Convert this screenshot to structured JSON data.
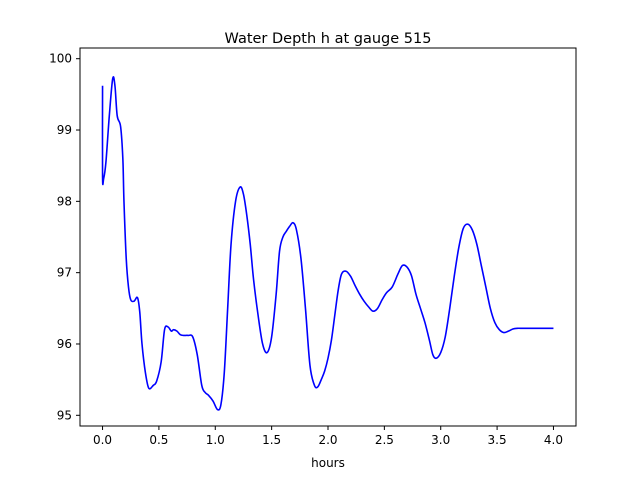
{
  "chart_data": {
    "type": "line",
    "title": "Water Depth h at gauge 515",
    "xlabel": "hours",
    "ylabel": "",
    "xlim": [
      -0.2,
      4.2
    ],
    "ylim": [
      94.85,
      100.15
    ],
    "xticks": [
      0.0,
      0.5,
      1.0,
      1.5,
      2.0,
      2.5,
      3.0,
      3.5,
      4.0
    ],
    "xtick_labels": [
      "0.0",
      "0.5",
      "1.0",
      "1.5",
      "2.0",
      "2.5",
      "3.0",
      "3.5",
      "4.0"
    ],
    "yticks": [
      95,
      96,
      97,
      98,
      99,
      100
    ],
    "ytick_labels": [
      "95",
      "96",
      "97",
      "98",
      "99",
      "100"
    ],
    "grid": false,
    "color": "#0000ff",
    "series": [
      {
        "x": [
          0.0,
          0.0,
          0.01,
          0.03,
          0.06,
          0.09,
          0.11,
          0.13,
          0.16,
          0.18,
          0.19,
          0.21,
          0.23,
          0.25,
          0.28,
          0.31,
          0.33,
          0.35,
          0.38,
          0.41,
          0.45,
          0.48,
          0.52,
          0.55,
          0.58,
          0.61,
          0.63,
          0.66,
          0.69,
          0.72,
          0.76,
          0.8,
          0.84,
          0.88,
          0.91,
          0.94,
          0.98,
          1.02,
          1.05,
          1.08,
          1.11,
          1.14,
          1.18,
          1.22,
          1.25,
          1.28,
          1.31,
          1.34,
          1.38,
          1.42,
          1.46,
          1.5,
          1.54,
          1.57,
          1.6,
          1.63,
          1.66,
          1.69,
          1.72,
          1.76,
          1.8,
          1.84,
          1.88,
          1.91,
          1.94,
          1.97,
          2.0,
          2.03,
          2.06,
          2.09,
          2.12,
          2.16,
          2.2,
          2.24,
          2.28,
          2.32,
          2.36,
          2.4,
          2.44,
          2.48,
          2.52,
          2.57,
          2.62,
          2.66,
          2.7,
          2.74,
          2.78,
          2.82,
          2.86,
          2.9,
          2.93,
          2.96,
          3.0,
          3.04,
          3.08,
          3.12,
          3.16,
          3.2,
          3.24,
          3.28,
          3.32,
          3.36,
          3.4,
          3.44,
          3.48,
          3.52,
          3.56,
          3.6,
          3.64,
          3.68,
          3.72,
          3.76,
          3.8,
          3.84,
          3.88,
          3.92,
          3.96,
          4.0
        ],
        "y": [
          99.62,
          98.35,
          98.32,
          98.55,
          99.2,
          99.72,
          99.62,
          99.2,
          99.05,
          98.6,
          98.0,
          97.2,
          96.8,
          96.62,
          96.6,
          96.65,
          96.45,
          96.0,
          95.6,
          95.38,
          95.42,
          95.48,
          95.75,
          96.2,
          96.24,
          96.18,
          96.2,
          96.18,
          96.13,
          96.12,
          96.12,
          96.1,
          95.85,
          95.42,
          95.32,
          95.28,
          95.2,
          95.08,
          95.15,
          95.6,
          96.5,
          97.4,
          98.0,
          98.2,
          98.1,
          97.8,
          97.4,
          96.9,
          96.4,
          96.0,
          95.88,
          96.1,
          96.7,
          97.3,
          97.5,
          97.58,
          97.65,
          97.7,
          97.6,
          97.2,
          96.5,
          95.7,
          95.42,
          95.4,
          95.5,
          95.62,
          95.8,
          96.05,
          96.4,
          96.75,
          96.98,
          97.02,
          96.95,
          96.82,
          96.7,
          96.6,
          96.52,
          96.46,
          96.5,
          96.62,
          96.72,
          96.8,
          96.98,
          97.1,
          97.08,
          96.96,
          96.7,
          96.5,
          96.3,
          96.05,
          95.85,
          95.8,
          95.88,
          96.1,
          96.5,
          96.95,
          97.35,
          97.62,
          97.68,
          97.6,
          97.4,
          97.1,
          96.8,
          96.5,
          96.3,
          96.2,
          96.16,
          96.18,
          96.21,
          96.22,
          96.22,
          96.22,
          96.22,
          96.22,
          96.22,
          96.22,
          96.22,
          96.22
        ]
      }
    ]
  }
}
